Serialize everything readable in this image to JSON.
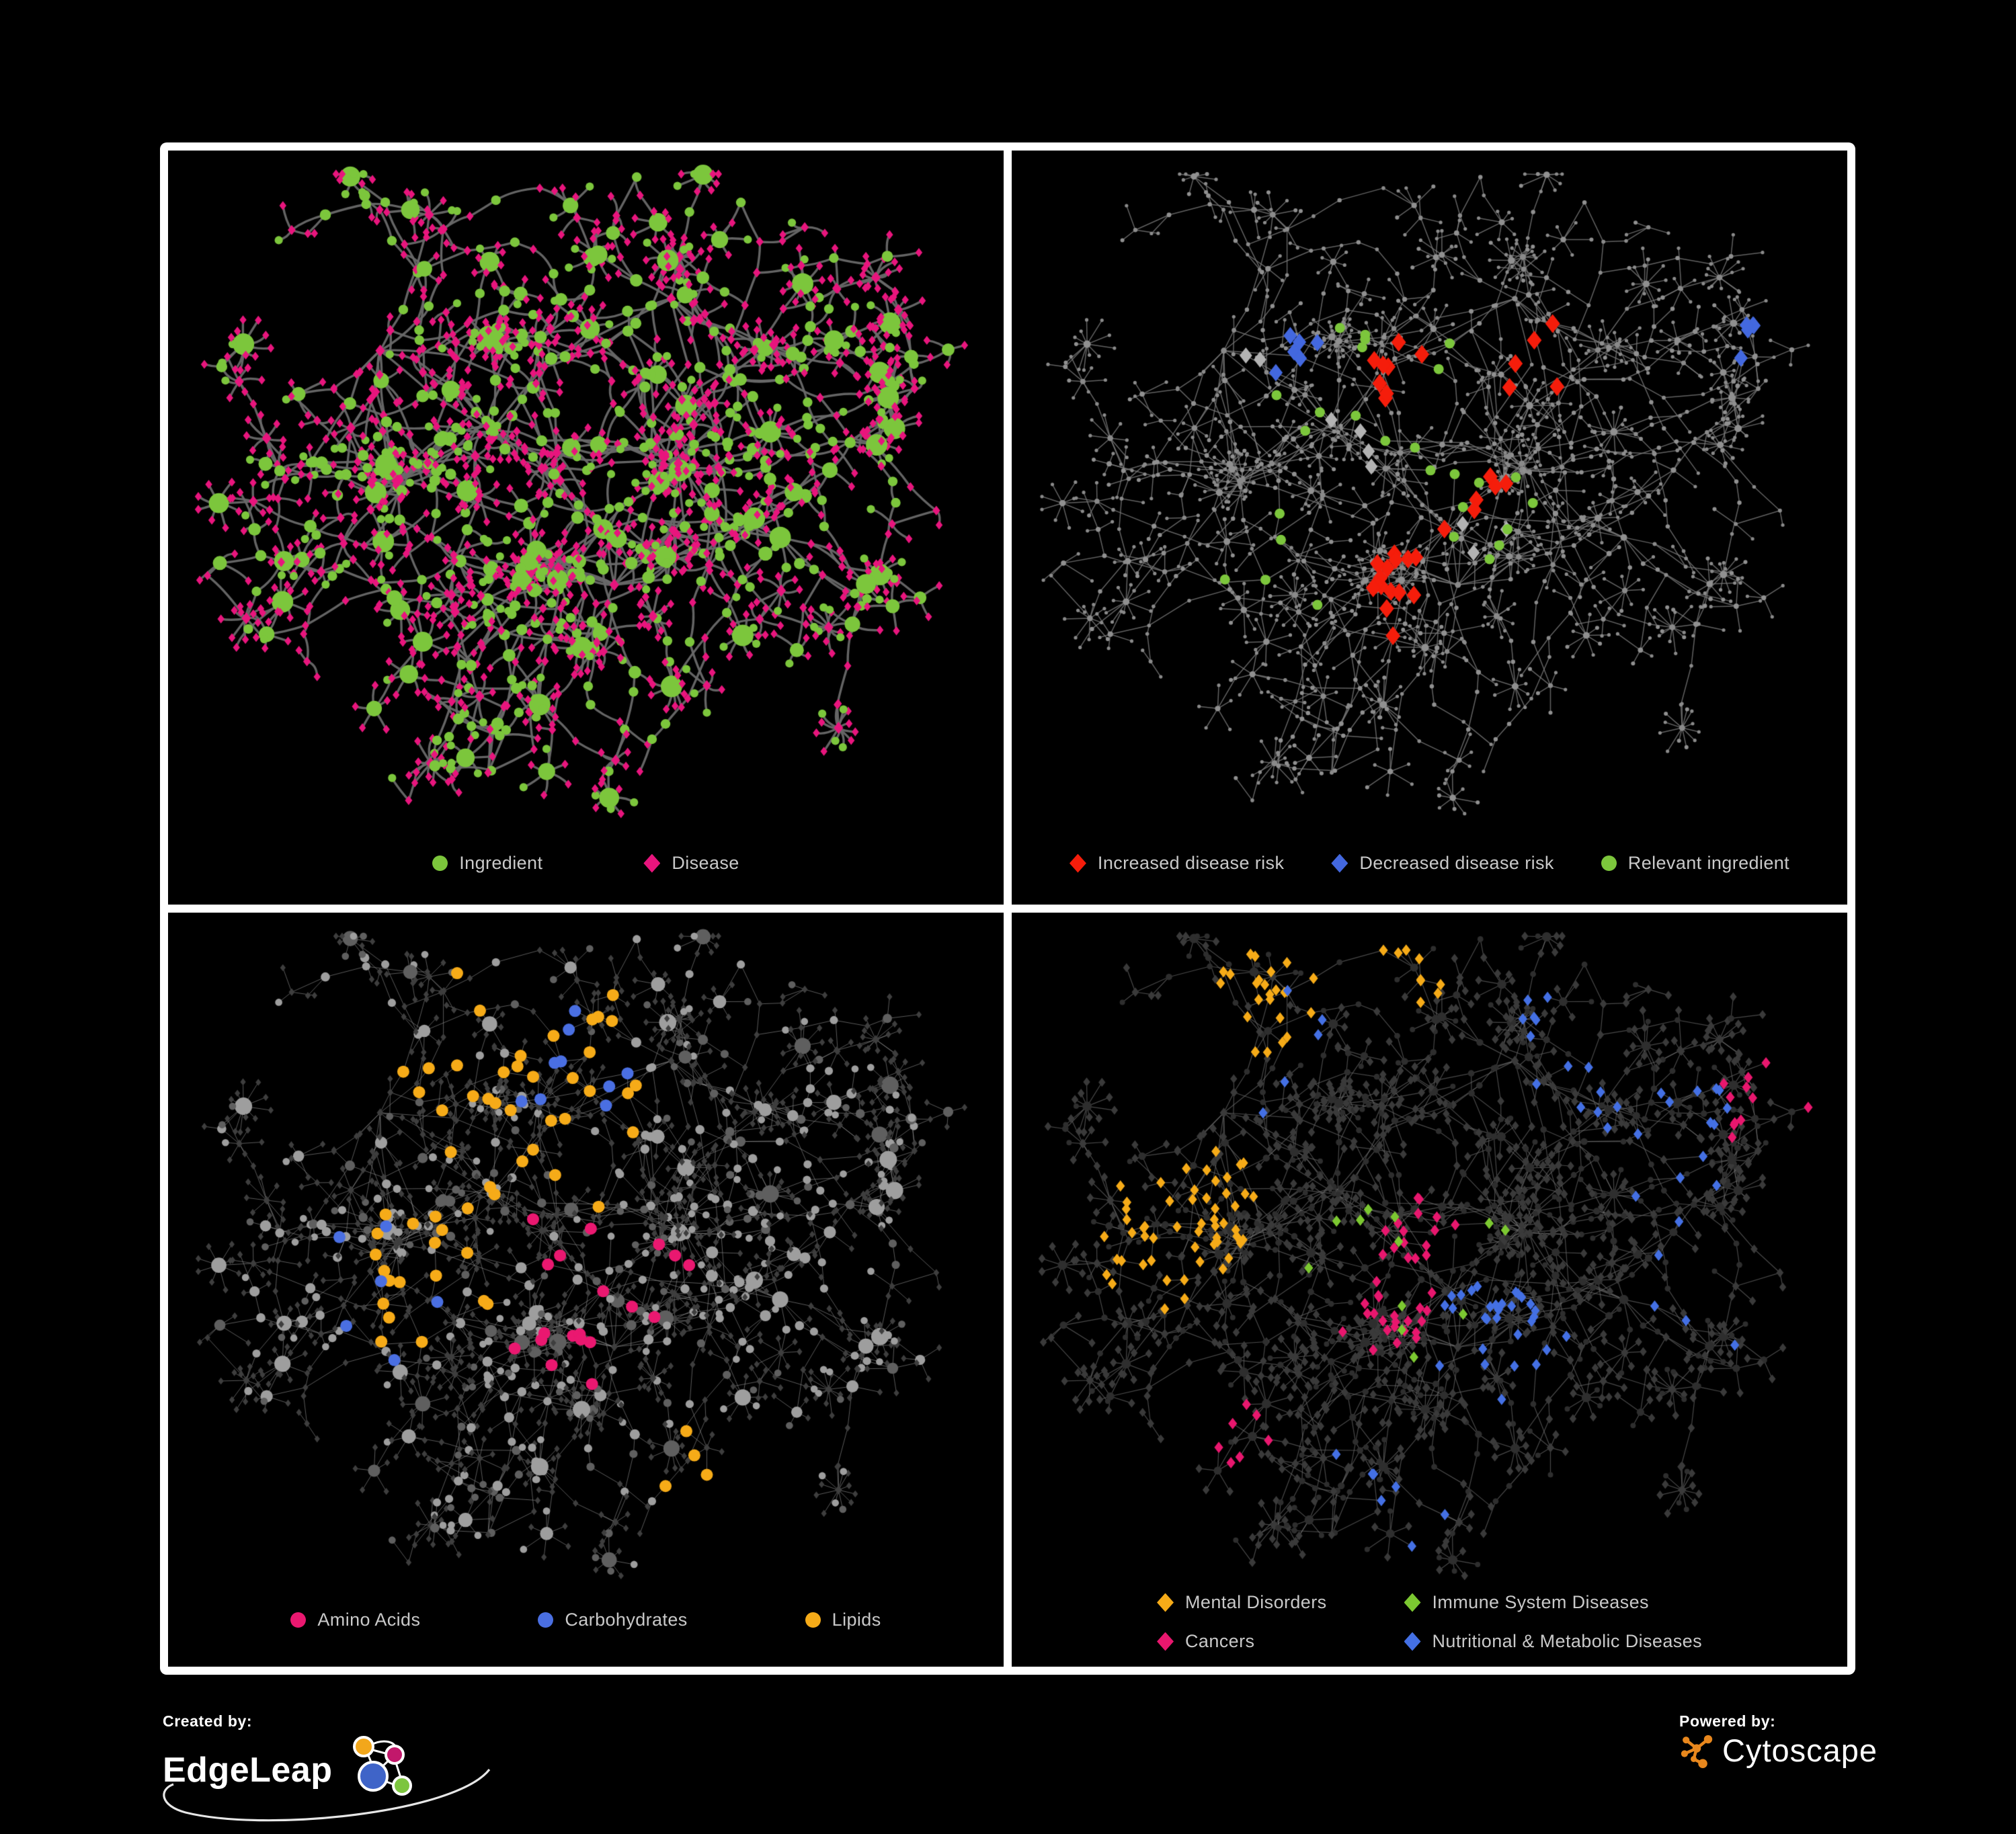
{
  "figure": {
    "background": "#000000",
    "frame_color": "#ffffff"
  },
  "network": {
    "seed": 1337,
    "clusters": 8,
    "branches_min": 6,
    "branches_max": 8,
    "burst_prob": 0.2
  },
  "panels": [
    {
      "id": "ingredient-disease",
      "legend": [
        {
          "label": "Ingredient",
          "shape": "circle",
          "color": "#7CC63C"
        },
        {
          "label": "Disease",
          "shape": "diamond",
          "color": "#E8157D"
        }
      ],
      "style": {
        "edge_color": "#696969",
        "edge_width": 3.4,
        "edge_alpha": 0.95,
        "curved": true,
        "seed": 7,
        "base": {
          "ingredient": {
            "shape": "circle",
            "color": "#7CC63C",
            "size": 5,
            "deg_scale": 1.1,
            "max_size": 16
          },
          "disease": {
            "shape": "diamond",
            "color": "#E8157D",
            "size": 6.4,
            "deg_scale": 0.3,
            "max_size": 9
          }
        },
        "highlights": []
      }
    },
    {
      "id": "disease-risk",
      "legend": [
        {
          "label": "Increased disease risk",
          "shape": "diamond",
          "color": "#F51D0B"
        },
        {
          "label": "Decreased disease risk",
          "shape": "diamond",
          "color": "#4368DF"
        },
        {
          "label": "Relevant ingredient",
          "shape": "circle",
          "color": "#7CC63C"
        }
      ],
      "style": {
        "edge_color": "#7B7B7B",
        "edge_width": 1.5,
        "edge_alpha": 0.8,
        "curved": false,
        "seed": 8,
        "base": {
          "ingredient": {
            "shape": "circle",
            "color": "#909090",
            "size": 2.8,
            "deg_scale": 0.22,
            "max_size": 5.5
          },
          "disease": {
            "shape": "circle",
            "color": "#8A8A8A",
            "size": 2.4,
            "deg_scale": 0.2,
            "max_size": 4.5
          }
        },
        "highlights": [
          {
            "kind": "disease",
            "shape": "diamond",
            "color": "#F51D0B",
            "count": 34,
            "size": 14,
            "foci": [
              [
                0.44,
                0.3
              ],
              [
                0.55,
                0.46
              ],
              [
                0.63,
                0.27
              ],
              [
                0.45,
                0.58
              ],
              [
                0.73,
                0.72
              ]
            ],
            "spread": 0.22
          },
          {
            "kind": "disease",
            "shape": "diamond",
            "color": "#4368DF",
            "count": 11,
            "size": 13,
            "foci": [
              [
                0.33,
                0.3
              ],
              [
                0.345,
                0.26
              ],
              [
                0.88,
                0.26
              ]
            ],
            "spread": 0.1
          },
          {
            "kind": "disease",
            "shape": "diamond",
            "color": "#B3B3B3",
            "count": 9,
            "size": 12,
            "foci": [
              [
                0.4,
                0.38
              ],
              [
                0.56,
                0.52
              ],
              [
                0.3,
                0.28
              ]
            ],
            "spread": 0.3
          },
          {
            "kind": "ingredient",
            "shape": "circle",
            "color": "#7CC63C",
            "count": 27,
            "size": 7.5,
            "foci": [
              [
                0.47,
                0.33
              ],
              [
                0.38,
                0.3
              ],
              [
                0.55,
                0.48
              ],
              [
                0.3,
                0.55
              ]
            ],
            "spread": 0.35
          }
        ]
      }
    },
    {
      "id": "nutrient-classes",
      "legend": [
        {
          "label": "Amino Acids",
          "shape": "circle",
          "color": "#EA1870"
        },
        {
          "label": "Carbohydrates",
          "shape": "circle",
          "color": "#4A6FE2"
        },
        {
          "label": "Lipids",
          "shape": "circle",
          "color": "#F6AB18"
        }
      ],
      "style": {
        "edge_color": "#969696",
        "edge_width": 1.0,
        "edge_alpha": 0.6,
        "curved": false,
        "seed": 9,
        "base": {
          "ingredient": {
            "shape": "circle",
            "color": "#9E9E9E",
            "alt_color": "#5F5F5F",
            "alt_prob": 0.3,
            "size": 4.6,
            "deg_scale": 0.75,
            "max_size": 13
          },
          "disease": {
            "shape": "diamond",
            "color": "#3E3E3E",
            "size": 5.2,
            "deg_scale": 0.12,
            "max_size": 7
          }
        },
        "highlights": [
          {
            "kind": "ingredient",
            "shape": "circle",
            "color": "#F6AB18",
            "count": 58,
            "size": 9,
            "foci": [
              [
                0.34,
                0.21
              ],
              [
                0.52,
                0.2
              ],
              [
                0.3,
                0.48
              ],
              [
                0.63,
                0.76
              ],
              [
                0.45,
                0.3
              ]
            ],
            "spread": 0.28
          },
          {
            "kind": "ingredient",
            "shape": "circle",
            "color": "#4A6FE2",
            "count": 15,
            "size": 9,
            "foci": [
              [
                0.5,
                0.2
              ],
              [
                0.27,
                0.52
              ],
              [
                0.03,
                0.13
              ]
            ],
            "spread": 0.18
          },
          {
            "kind": "ingredient",
            "shape": "circle",
            "color": "#EA1870",
            "count": 19,
            "size": 9,
            "foci": [
              [
                0.5,
                0.5
              ]
            ],
            "spread": 1.6
          }
        ]
      }
    },
    {
      "id": "disease-classes",
      "legend": [
        {
          "label": "Mental Disorders",
          "shape": "diamond",
          "color": "#F6AB18"
        },
        {
          "label": "Immune System Diseases",
          "shape": "diamond",
          "color": "#7CC831"
        },
        {
          "label": "Cancers",
          "shape": "diamond",
          "color": "#E8176E"
        },
        {
          "label": "Nutritional & Metabolic Diseases",
          "shape": "diamond",
          "color": "#4470E4"
        }
      ],
      "style": {
        "edge_color": "#707070",
        "edge_width": 1.2,
        "edge_alpha": 0.65,
        "curved": false,
        "seed": 10,
        "base": {
          "ingredient": {
            "shape": "circle",
            "color": "#2E2E2E",
            "size": 3.6,
            "deg_scale": 0.4,
            "max_size": 7
          },
          "disease": {
            "shape": "diamond",
            "color": "#3A3A3A",
            "size": 6.6,
            "deg_scale": 0.1,
            "max_size": 8
          }
        },
        "highlights": [
          {
            "kind": "disease",
            "shape": "diamond",
            "color": "#F6AB18",
            "count": 88,
            "size": 8.5,
            "foci": [
              [
                0.17,
                0.44
              ],
              [
                0.22,
                0.4
              ],
              [
                0.3,
                0.1
              ],
              [
                0.46,
                0.06
              ]
            ],
            "spread": 0.16
          },
          {
            "kind": "disease",
            "shape": "diamond",
            "color": "#E8176E",
            "count": 56,
            "size": 8.5,
            "foci": [
              [
                0.45,
                0.52
              ],
              [
                0.5,
                0.44
              ],
              [
                0.92,
                0.26
              ],
              [
                0.25,
                0.7
              ]
            ],
            "spread": 0.18
          },
          {
            "kind": "disease",
            "shape": "diamond",
            "color": "#4470E4",
            "count": 74,
            "size": 8.5,
            "foci": [
              [
                0.6,
                0.56
              ],
              [
                0.78,
                0.3
              ],
              [
                0.68,
                0.16
              ],
              [
                0.3,
                0.16
              ],
              [
                0.45,
                0.8
              ],
              [
                0.82,
                0.5
              ]
            ],
            "spread": 0.3
          },
          {
            "kind": "disease",
            "shape": "diamond",
            "color": "#7CC831",
            "count": 12,
            "size": 8.5,
            "foci": [
              [
                0.5,
                0.45
              ]
            ],
            "spread": 1.4
          }
        ]
      }
    }
  ],
  "footer": {
    "created_by_label": "Created by:",
    "created_by_name": "EdgeLeap",
    "powered_by_label": "Powered by:",
    "powered_by_name": "Cytoscape"
  }
}
